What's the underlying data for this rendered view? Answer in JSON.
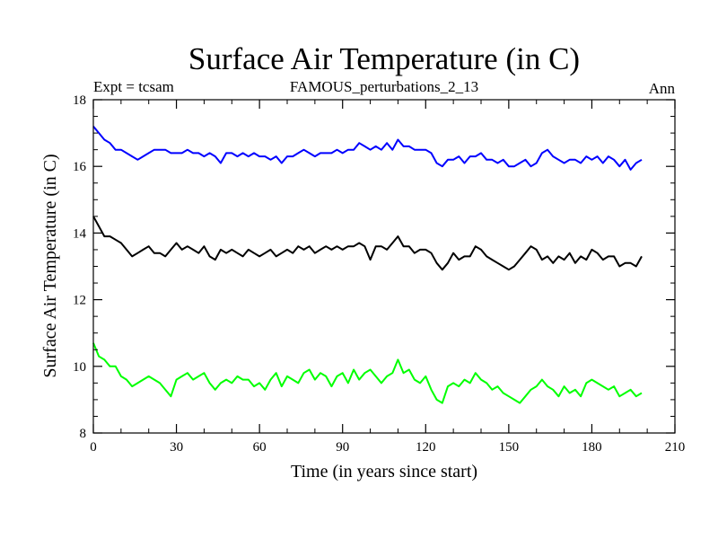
{
  "chart_data": {
    "type": "line",
    "title": "Surface Air Temperature (in C)",
    "subtitle_left": "Expt = tcsam",
    "subtitle_center": "FAMOUS_perturbations_2_13",
    "subtitle_right": "Ann",
    "xlabel": "Time (in years since start)",
    "ylabel": "Surface Air Temperature (in C)",
    "xlim": [
      0,
      210
    ],
    "ylim": [
      8,
      18
    ],
    "xticks": [
      0,
      30,
      60,
      90,
      120,
      150,
      180,
      210
    ],
    "yticks": [
      8,
      10,
      12,
      14,
      16,
      18
    ],
    "x_minor_step": 10,
    "y_minor_step": 0.5,
    "series": [
      {
        "name": "blue",
        "color": "#0000ff",
        "x": [
          0,
          2,
          4,
          6,
          8,
          10,
          12,
          14,
          16,
          18,
          20,
          22,
          24,
          26,
          28,
          30,
          32,
          34,
          36,
          38,
          40,
          42,
          44,
          46,
          48,
          50,
          52,
          54,
          56,
          58,
          60,
          62,
          64,
          66,
          68,
          70,
          72,
          74,
          76,
          78,
          80,
          82,
          84,
          86,
          88,
          90,
          92,
          94,
          96,
          98,
          100,
          102,
          104,
          106,
          108,
          110,
          112,
          114,
          116,
          118,
          120,
          122,
          124,
          126,
          128,
          130,
          132,
          134,
          136,
          138,
          140,
          142,
          144,
          146,
          148,
          150,
          152,
          154,
          156,
          158,
          160,
          162,
          164,
          166,
          168,
          170,
          172,
          174,
          176,
          178,
          180,
          182,
          184,
          186,
          188,
          190,
          192,
          194,
          196,
          198
        ],
        "y": [
          17.2,
          17.0,
          16.8,
          16.7,
          16.5,
          16.5,
          16.4,
          16.3,
          16.2,
          16.3,
          16.4,
          16.5,
          16.5,
          16.5,
          16.4,
          16.4,
          16.4,
          16.5,
          16.4,
          16.4,
          16.3,
          16.4,
          16.3,
          16.1,
          16.4,
          16.4,
          16.3,
          16.4,
          16.3,
          16.4,
          16.3,
          16.3,
          16.2,
          16.3,
          16.1,
          16.3,
          16.3,
          16.4,
          16.5,
          16.4,
          16.3,
          16.4,
          16.4,
          16.4,
          16.5,
          16.4,
          16.5,
          16.5,
          16.7,
          16.6,
          16.5,
          16.6,
          16.5,
          16.7,
          16.5,
          16.8,
          16.6,
          16.6,
          16.5,
          16.5,
          16.5,
          16.4,
          16.1,
          16.0,
          16.2,
          16.2,
          16.3,
          16.1,
          16.3,
          16.3,
          16.4,
          16.2,
          16.2,
          16.1,
          16.2,
          16.0,
          16.0,
          16.1,
          16.2,
          16.0,
          16.1,
          16.4,
          16.5,
          16.3,
          16.2,
          16.1,
          16.2,
          16.2,
          16.1,
          16.3,
          16.2,
          16.3,
          16.1,
          16.3,
          16.2,
          16.0,
          16.2,
          15.9,
          16.1,
          16.2
        ]
      },
      {
        "name": "black",
        "color": "#000000",
        "x": [
          0,
          2,
          4,
          6,
          8,
          10,
          12,
          14,
          16,
          18,
          20,
          22,
          24,
          26,
          28,
          30,
          32,
          34,
          36,
          38,
          40,
          42,
          44,
          46,
          48,
          50,
          52,
          54,
          56,
          58,
          60,
          62,
          64,
          66,
          68,
          70,
          72,
          74,
          76,
          78,
          80,
          82,
          84,
          86,
          88,
          90,
          92,
          94,
          96,
          98,
          100,
          102,
          104,
          106,
          108,
          110,
          112,
          114,
          116,
          118,
          120,
          122,
          124,
          126,
          128,
          130,
          132,
          134,
          136,
          138,
          140,
          142,
          144,
          146,
          148,
          150,
          152,
          154,
          156,
          158,
          160,
          162,
          164,
          166,
          168,
          170,
          172,
          174,
          176,
          178,
          180,
          182,
          184,
          186,
          188,
          190,
          192,
          194,
          196,
          198
        ],
        "y": [
          14.5,
          14.2,
          13.9,
          13.9,
          13.8,
          13.7,
          13.5,
          13.3,
          13.4,
          13.5,
          13.6,
          13.4,
          13.4,
          13.3,
          13.5,
          13.7,
          13.5,
          13.6,
          13.5,
          13.4,
          13.6,
          13.3,
          13.2,
          13.5,
          13.4,
          13.5,
          13.4,
          13.3,
          13.5,
          13.4,
          13.3,
          13.4,
          13.5,
          13.3,
          13.4,
          13.5,
          13.4,
          13.6,
          13.5,
          13.6,
          13.4,
          13.5,
          13.6,
          13.5,
          13.6,
          13.5,
          13.6,
          13.6,
          13.7,
          13.6,
          13.2,
          13.6,
          13.6,
          13.5,
          13.7,
          13.9,
          13.6,
          13.6,
          13.4,
          13.5,
          13.5,
          13.4,
          13.1,
          12.9,
          13.1,
          13.4,
          13.2,
          13.3,
          13.3,
          13.6,
          13.5,
          13.3,
          13.2,
          13.1,
          13.0,
          12.9,
          13.0,
          13.2,
          13.4,
          13.6,
          13.5,
          13.2,
          13.3,
          13.1,
          13.3,
          13.2,
          13.4,
          13.1,
          13.3,
          13.2,
          13.5,
          13.4,
          13.2,
          13.3,
          13.3,
          13.0,
          13.1,
          13.1,
          13.0,
          13.3
        ]
      },
      {
        "name": "green",
        "color": "#00ff00",
        "x": [
          0,
          2,
          4,
          6,
          8,
          10,
          12,
          14,
          16,
          18,
          20,
          22,
          24,
          26,
          28,
          30,
          32,
          34,
          36,
          38,
          40,
          42,
          44,
          46,
          48,
          50,
          52,
          54,
          56,
          58,
          60,
          62,
          64,
          66,
          68,
          70,
          72,
          74,
          76,
          78,
          80,
          82,
          84,
          86,
          88,
          90,
          92,
          94,
          96,
          98,
          100,
          102,
          104,
          106,
          108,
          110,
          112,
          114,
          116,
          118,
          120,
          122,
          124,
          126,
          128,
          130,
          132,
          134,
          136,
          138,
          140,
          142,
          144,
          146,
          148,
          150,
          152,
          154,
          156,
          158,
          160,
          162,
          164,
          166,
          168,
          170,
          172,
          174,
          176,
          178,
          180,
          182,
          184,
          186,
          188,
          190,
          192,
          194,
          196,
          198
        ],
        "y": [
          10.7,
          10.3,
          10.2,
          10.0,
          10.0,
          9.7,
          9.6,
          9.4,
          9.5,
          9.6,
          9.7,
          9.6,
          9.5,
          9.3,
          9.1,
          9.6,
          9.7,
          9.8,
          9.6,
          9.7,
          9.8,
          9.5,
          9.3,
          9.5,
          9.6,
          9.5,
          9.7,
          9.6,
          9.6,
          9.4,
          9.5,
          9.3,
          9.6,
          9.8,
          9.4,
          9.7,
          9.6,
          9.5,
          9.8,
          9.9,
          9.6,
          9.8,
          9.7,
          9.4,
          9.7,
          9.8,
          9.5,
          9.9,
          9.6,
          9.8,
          9.9,
          9.7,
          9.5,
          9.7,
          9.8,
          10.2,
          9.8,
          9.9,
          9.6,
          9.5,
          9.7,
          9.3,
          9.0,
          8.9,
          9.4,
          9.5,
          9.4,
          9.6,
          9.5,
          9.8,
          9.6,
          9.5,
          9.3,
          9.4,
          9.2,
          9.1,
          9.0,
          8.9,
          9.1,
          9.3,
          9.4,
          9.6,
          9.4,
          9.3,
          9.1,
          9.4,
          9.2,
          9.3,
          9.1,
          9.5,
          9.6,
          9.5,
          9.4,
          9.3,
          9.4,
          9.1,
          9.2,
          9.3,
          9.1,
          9.2
        ]
      }
    ]
  }
}
